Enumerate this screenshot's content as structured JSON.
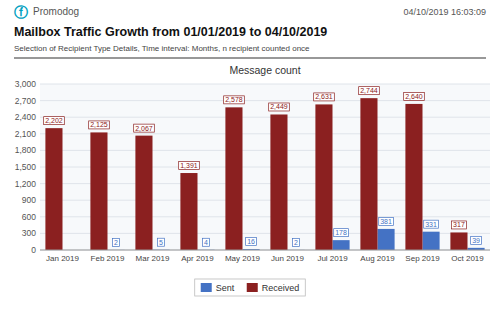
{
  "chart_data": {
    "type": "bar",
    "title": "Mailbox Traffic Growth from 01/01/2019 to 04/10/2019",
    "subtitle": "Selection of Recipient Type Details, Time interval: Months, n recipient counted once",
    "annotations": [
      "ⓕ",
      "Promodog",
      "04/10/2019 16:03:09",
      "Message count"
    ],
    "categories": [
      "Jan 2019",
      "Feb 2019",
      "Mar 2019",
      "Apr 2019",
      "May 2019",
      "Jun 2019",
      "Jul 2019",
      "Aug 2019",
      "Sep 2019",
      "Oct 2019"
    ],
    "series": [
      {
        "name": "Sent",
        "color": "#4472c4",
        "values": [
          0,
          2,
          5,
          4,
          16,
          2,
          178,
          381,
          331,
          39
        ],
        "value_labels": [
          null,
          "2",
          "5",
          "4",
          "16",
          "2",
          "178",
          "381",
          "331",
          "39"
        ]
      },
      {
        "name": "Received",
        "color": "#8b2020",
        "values": [
          2202,
          2125,
          2067,
          1391,
          2578,
          2449,
          2631,
          2744,
          2640,
          317
        ],
        "value_labels": [
          "2,202",
          "2,125",
          "2,067",
          "1,391",
          "2,578",
          "2,449",
          "2,631",
          "2,744",
          "2,640",
          "317"
        ]
      }
    ],
    "ylim": [
      0,
      3000
    ],
    "yticks": [
      0,
      300,
      600,
      900,
      {
        "value": 1200,
        "label": "1,200"
      },
      {
        "value": 1500,
        "label": "1,500"
      },
      {
        "value": 1800,
        "label": "1,800"
      },
      {
        "value": 2100,
        "label": "2,100"
      },
      {
        "value": 2400,
        "label": "2,400"
      },
      {
        "value": 2700,
        "label": "2,700"
      },
      {
        "value": 3000,
        "label": "3,000"
      }
    ],
    "grid": true,
    "data_labels": true,
    "legend": "bottom"
  }
}
